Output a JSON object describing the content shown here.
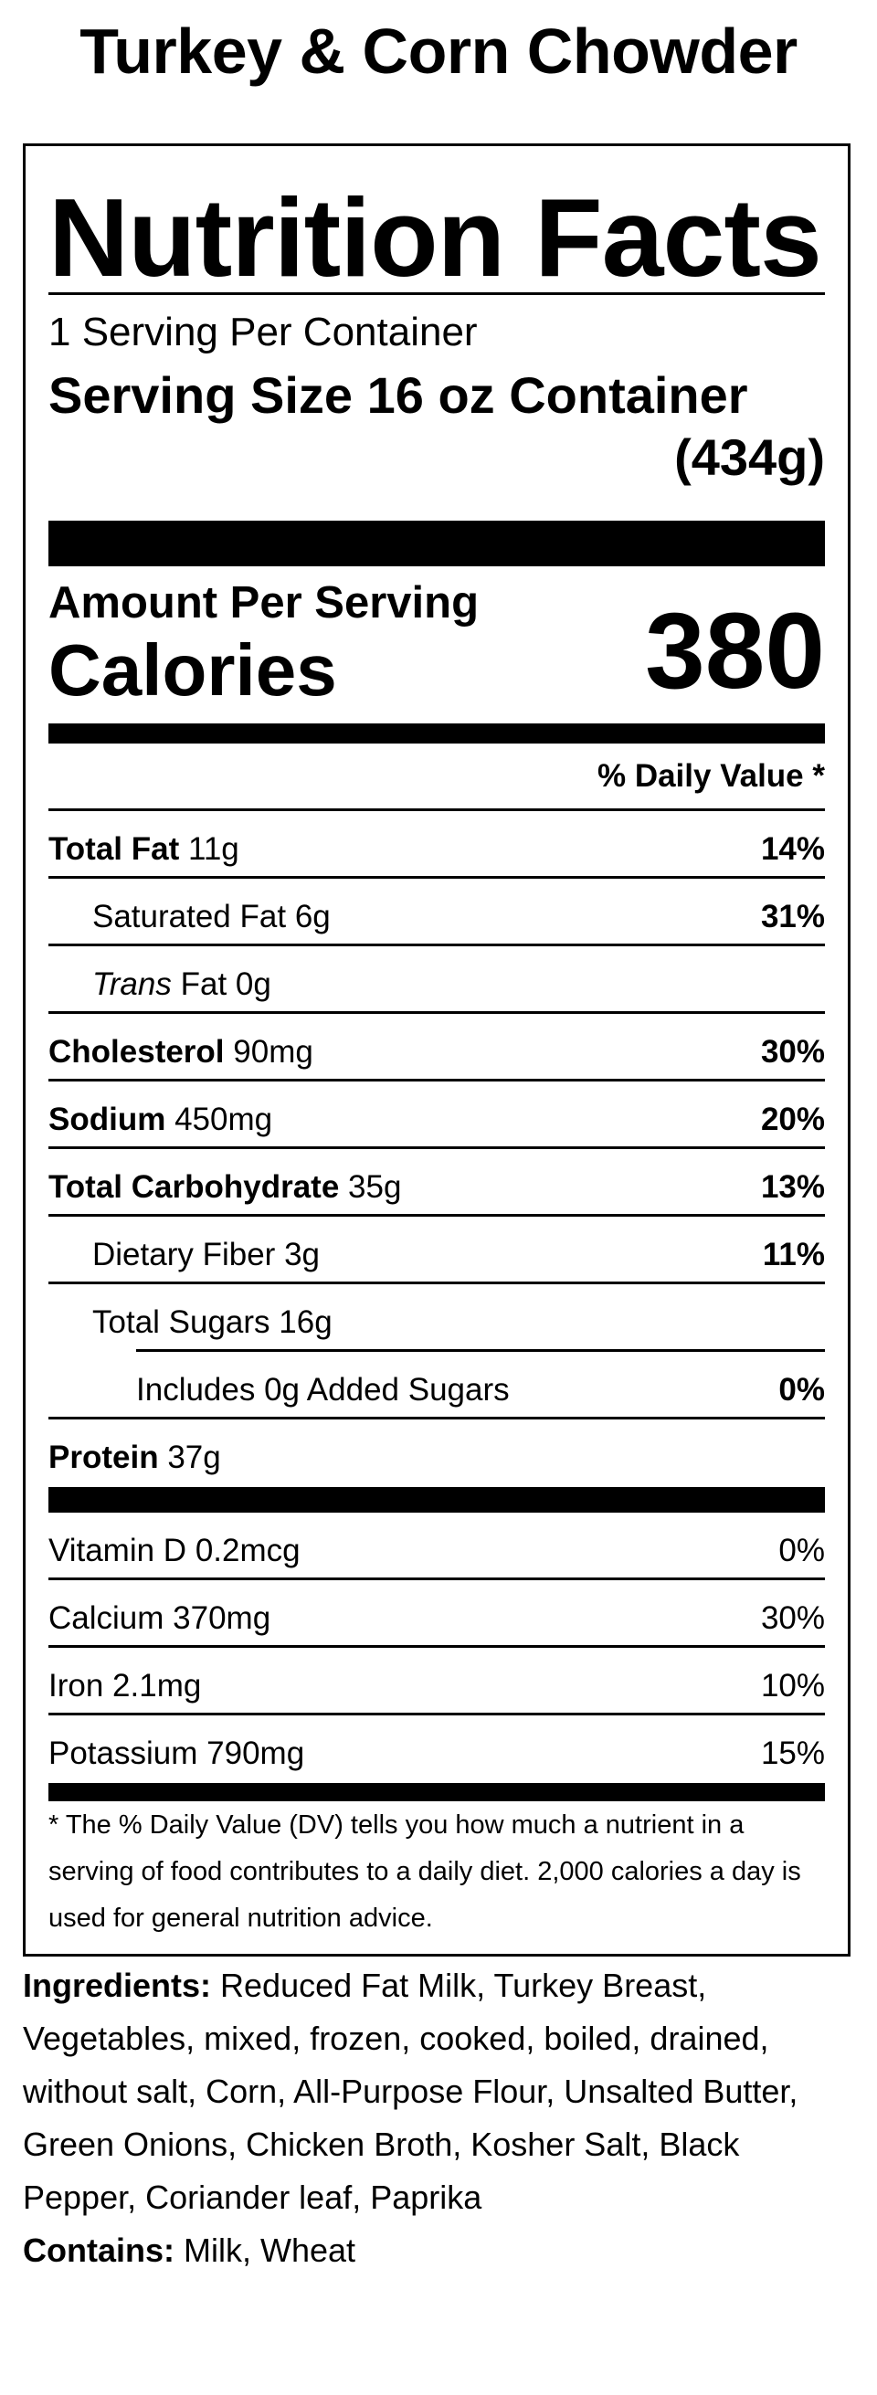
{
  "title": "Turkey & Corn Chowder",
  "nf": {
    "heading": "Nutrition Facts",
    "servings_per_container": "1 Serving Per Container",
    "serving_size_label": "Serving Size",
    "serving_size_value": "16 oz Container",
    "serving_size_grams": "(434g)",
    "amount_per_serving": "Amount Per Serving",
    "calories_label": "Calories",
    "calories_value": "380",
    "dv_header": "% Daily Value *"
  },
  "nutrients": [
    {
      "name": "Total Fat",
      "amount": "11g",
      "dv": "14%"
    },
    {
      "name": "Saturated Fat",
      "amount": "6g",
      "dv": "31%"
    },
    {
      "name": "Trans",
      "name_rest": "Fat",
      "amount": "0g",
      "dv": ""
    },
    {
      "name": "Cholesterol",
      "amount": "90mg",
      "dv": "30%"
    },
    {
      "name": "Sodium",
      "amount": "450mg",
      "dv": "20%"
    },
    {
      "name": "Total Carbohydrate",
      "amount": "35g",
      "dv": "13%"
    },
    {
      "name": "Dietary Fiber",
      "amount": "3g",
      "dv": "11%"
    },
    {
      "name": "Total Sugars",
      "amount": "16g",
      "dv": ""
    },
    {
      "name": "Includes 0g Added Sugars",
      "amount": "",
      "dv": "0%"
    },
    {
      "name": "Protein",
      "amount": "37g",
      "dv": ""
    }
  ],
  "vitamins": [
    {
      "name": "Vitamin D",
      "amount": "0.2mcg",
      "dv": "0%"
    },
    {
      "name": "Calcium",
      "amount": "370mg",
      "dv": "30%"
    },
    {
      "name": "Iron",
      "amount": "2.1mg",
      "dv": "10%"
    },
    {
      "name": "Potassium",
      "amount": "790mg",
      "dv": "15%"
    }
  ],
  "footnote": "* The % Daily Value (DV) tells you how much a nutrient in a serving of food contributes to a daily diet. 2,000 calories a day is used for general nutrition advice.",
  "ingredients": {
    "label": "Ingredients:",
    "text": "Reduced Fat Milk, Turkey Breast, Vegetables, mixed, frozen, cooked, boiled, drained, without salt, Corn, All-Purpose Flour, Unsalted Butter, Green Onions, Chicken Broth, Kosher Salt, Black Pepper, Coriander leaf, Paprika"
  },
  "contains": {
    "label": "Contains:",
    "text": "Milk, Wheat"
  }
}
